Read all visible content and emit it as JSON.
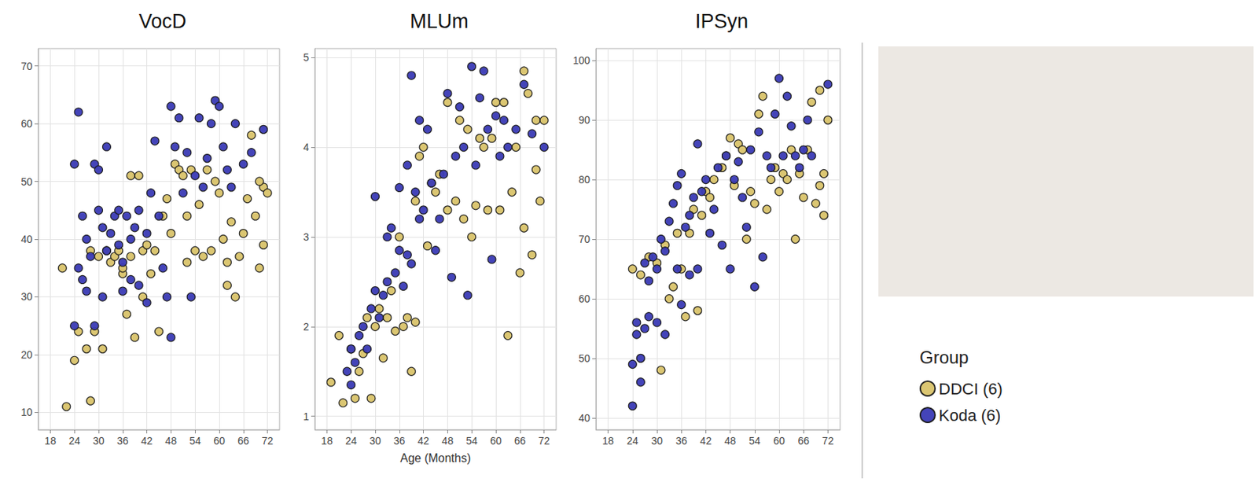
{
  "legend": "right",
  "legend_title": "Group",
  "chart_data": [
    {
      "type": "scatter",
      "title": "VocD",
      "grid": true,
      "xlim": [
        15,
        75
      ],
      "xticks": [
        18,
        24,
        30,
        36,
        42,
        48,
        54,
        60,
        66,
        72
      ],
      "ylim": [
        7,
        73
      ],
      "yticks": [
        10,
        20,
        30,
        40,
        50,
        60,
        70
      ],
      "series": [
        {
          "name": "DDCI (6)",
          "color": "#d9c36a",
          "marker": "circle",
          "x": [
            21,
            22,
            24,
            25,
            27,
            28,
            28,
            29,
            30,
            31,
            32,
            33,
            34,
            35,
            36,
            36,
            37,
            38,
            38,
            39,
            40,
            41,
            41,
            42,
            43,
            44,
            45,
            46,
            47,
            48,
            49,
            50,
            51,
            52,
            52,
            53,
            54,
            55,
            56,
            57,
            58,
            59,
            60,
            61,
            62,
            62,
            63,
            64,
            65,
            66,
            67,
            68,
            69,
            70,
            71,
            72,
            71,
            70
          ],
          "values": [
            35,
            11,
            19,
            24,
            21,
            12,
            38,
            24,
            37,
            21,
            38,
            36,
            37,
            38,
            34,
            35,
            27,
            37,
            51,
            23,
            51,
            30,
            38,
            39,
            34,
            38,
            24,
            44,
            47,
            41,
            53,
            52,
            51,
            36,
            44,
            52,
            38,
            46,
            37,
            52,
            38,
            50,
            48,
            40,
            36,
            32,
            43,
            30,
            37,
            41,
            47,
            58,
            44,
            35,
            49,
            48,
            39,
            50
          ]
        },
        {
          "name": "Koda (6)",
          "color": "#3a3ab5",
          "marker": "circle",
          "x": [
            24,
            24,
            25,
            25,
            26,
            26,
            27,
            27,
            28,
            29,
            29,
            30,
            30,
            31,
            31,
            32,
            32,
            33,
            34,
            35,
            35,
            36,
            36,
            37,
            38,
            38,
            39,
            40,
            40,
            42,
            42,
            43,
            44,
            45,
            46,
            47,
            48,
            48,
            49,
            50,
            51,
            52,
            53,
            54,
            55,
            56,
            57,
            58,
            59,
            60,
            61,
            62,
            63,
            64,
            66,
            68,
            71
          ],
          "values": [
            25,
            53,
            62,
            35,
            44,
            33,
            40,
            31,
            37,
            53,
            25,
            52,
            45,
            30,
            42,
            56,
            38,
            41,
            44,
            45,
            39,
            36,
            31,
            44,
            40,
            33,
            42,
            45,
            32,
            41,
            29,
            48,
            57,
            44,
            35,
            30,
            63,
            23,
            56,
            61,
            48,
            55,
            30,
            51,
            61,
            49,
            54,
            60,
            64,
            63,
            56,
            52,
            49,
            60,
            53,
            55,
            59
          ]
        }
      ]
    },
    {
      "type": "scatter",
      "title": "MLUm",
      "xlabel": "Age (Months)",
      "grid": true,
      "xlim": [
        15,
        75
      ],
      "xticks": [
        18,
        24,
        30,
        36,
        42,
        48,
        54,
        60,
        66,
        72
      ],
      "ylim": [
        0.85,
        5.1
      ],
      "yticks": [
        1,
        2,
        3,
        4,
        5
      ],
      "series": [
        {
          "name": "DDCI (6)",
          "color": "#d9c36a",
          "marker": "circle",
          "x": [
            19,
            21,
            22,
            24,
            25,
            26,
            27,
            28,
            29,
            30,
            31,
            32,
            33,
            34,
            35,
            36,
            37,
            38,
            39,
            40,
            40,
            41,
            42,
            43,
            44,
            45,
            46,
            48,
            48,
            50,
            51,
            52,
            53,
            54,
            55,
            56,
            57,
            58,
            59,
            60,
            61,
            62,
            63,
            64,
            65,
            66,
            67,
            68,
            69,
            70,
            70,
            71,
            72,
            67
          ],
          "values": [
            1.38,
            1.9,
            1.15,
            1.75,
            1.2,
            1.5,
            1.7,
            2.1,
            1.2,
            2.0,
            2.2,
            1.65,
            2.1,
            2.4,
            1.95,
            3.0,
            2.0,
            2.1,
            1.5,
            2.05,
            3.4,
            3.9,
            4.0,
            2.9,
            3.6,
            3.5,
            3.7,
            4.5,
            3.3,
            3.4,
            4.3,
            3.2,
            4.2,
            3.0,
            3.35,
            4.1,
            4.0,
            3.3,
            4.1,
            4.5,
            3.3,
            4.5,
            1.9,
            3.5,
            4.0,
            2.6,
            4.85,
            4.6,
            2.8,
            4.3,
            3.75,
            3.4,
            4.3,
            3.1
          ]
        },
        {
          "name": "Koda (6)",
          "color": "#3a3ab5",
          "marker": "circle",
          "x": [
            23,
            24,
            24,
            25,
            26,
            27,
            28,
            29,
            30,
            30,
            31,
            32,
            33,
            33,
            34,
            35,
            36,
            36,
            37,
            38,
            38,
            39,
            39,
            40,
            41,
            41,
            42,
            43,
            44,
            45,
            46,
            47,
            48,
            49,
            50,
            51,
            52,
            53,
            54,
            55,
            56,
            57,
            58,
            59,
            60,
            61,
            62,
            63,
            65,
            67,
            69,
            72
          ],
          "values": [
            1.5,
            1.35,
            1.75,
            1.6,
            1.9,
            2.0,
            1.75,
            2.2,
            2.4,
            3.45,
            2.1,
            2.35,
            3.0,
            2.5,
            3.1,
            2.6,
            3.55,
            2.85,
            2.45,
            3.8,
            2.8,
            4.8,
            2.7,
            3.5,
            4.3,
            3.2,
            3.3,
            4.2,
            3.6,
            2.85,
            3.2,
            3.7,
            4.6,
            2.55,
            3.9,
            4.45,
            4.0,
            2.35,
            4.9,
            3.8,
            4.55,
            4.85,
            4.2,
            2.75,
            4.35,
            3.9,
            4.3,
            4.0,
            4.2,
            4.7,
            4.15,
            4.0
          ]
        }
      ]
    },
    {
      "type": "scatter",
      "title": "IPSyn",
      "grid": true,
      "xlim": [
        15,
        75
      ],
      "xticks": [
        18,
        24,
        30,
        36,
        42,
        48,
        54,
        60,
        66,
        72
      ],
      "ylim": [
        38,
        102
      ],
      "yticks": [
        40,
        50,
        60,
        70,
        80,
        90,
        100
      ],
      "series": [
        {
          "name": "DDCI (6)",
          "color": "#d9c36a",
          "marker": "circle",
          "x": [
            24,
            26,
            28,
            30,
            31,
            32,
            33,
            34,
            35,
            36,
            37,
            38,
            39,
            40,
            41,
            42,
            43,
            44,
            46,
            47,
            48,
            49,
            50,
            51,
            52,
            53,
            54,
            55,
            56,
            57,
            58,
            59,
            60,
            61,
            62,
            63,
            64,
            65,
            66,
            67,
            68,
            69,
            70,
            71,
            72,
            71,
            70
          ],
          "values": [
            65,
            64,
            67,
            66,
            48,
            69,
            60,
            62,
            71,
            65,
            57,
            71,
            75,
            58,
            74,
            78,
            77,
            80,
            82,
            84,
            87,
            79,
            86,
            85,
            70,
            78,
            76,
            91,
            94,
            75,
            80,
            82,
            78,
            81,
            80,
            85,
            70,
            81,
            77,
            85,
            93,
            76,
            95,
            81,
            90,
            74,
            79
          ]
        },
        {
          "name": "Koda (6)",
          "color": "#3a3ab5",
          "marker": "circle",
          "x": [
            24,
            24,
            25,
            25,
            26,
            26,
            27,
            27,
            28,
            28,
            29,
            30,
            30,
            31,
            32,
            32,
            33,
            34,
            35,
            35,
            36,
            36,
            37,
            38,
            38,
            39,
            40,
            40,
            41,
            42,
            43,
            44,
            45,
            46,
            47,
            48,
            49,
            50,
            51,
            52,
            53,
            54,
            55,
            56,
            57,
            58,
            59,
            60,
            61,
            62,
            63,
            64,
            65,
            66,
            67,
            68,
            72
          ],
          "values": [
            42,
            49,
            54,
            56,
            46,
            50,
            55,
            66,
            57,
            63,
            67,
            65,
            56,
            70,
            54,
            68,
            73,
            76,
            79,
            65,
            81,
            59,
            72,
            74,
            64,
            77,
            86,
            65,
            78,
            80,
            71,
            75,
            82,
            69,
            84,
            65,
            80,
            83,
            77,
            72,
            85,
            62,
            88,
            67,
            84,
            82,
            91,
            97,
            84,
            94,
            89,
            84,
            82,
            85,
            90,
            84,
            96
          ]
        }
      ]
    }
  ]
}
